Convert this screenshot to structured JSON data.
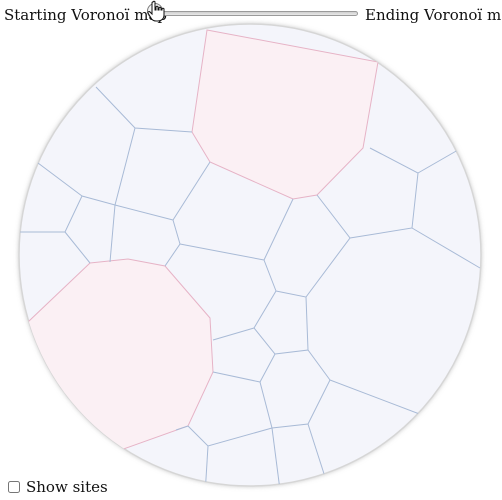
{
  "slider": {
    "start_label": "Starting Voronoï map",
    "end_label": "Ending Voronoï map",
    "value": 0
  },
  "sites_toggle": {
    "label": "Show sites",
    "checked": false
  },
  "colors": {
    "cell_fill": "#f4f5fb",
    "cell_highlight": "#fbf0f4",
    "stroke_blue": "#a8bad6",
    "stroke_pink": "#e6b3c6",
    "circle_border": "#d8d8d8"
  },
  "icons": {
    "cursor": "hand-pointer-icon"
  }
}
